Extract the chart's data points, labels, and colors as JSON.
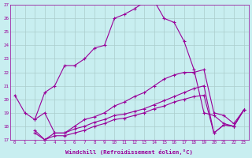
{
  "xlabel": "Windchill (Refroidissement éolien,°C)",
  "xlim": [
    -0.5,
    23.5
  ],
  "ylim": [
    17,
    27
  ],
  "xticks": [
    0,
    1,
    2,
    3,
    4,
    5,
    6,
    7,
    8,
    9,
    10,
    11,
    12,
    13,
    14,
    15,
    16,
    17,
    18,
    19,
    20,
    21,
    22,
    23
  ],
  "yticks": [
    17,
    18,
    19,
    20,
    21,
    22,
    23,
    24,
    25,
    26,
    27
  ],
  "background_color": "#c8eef0",
  "grid_color": "#aacccc",
  "line_color": "#990099",
  "line1_x": [
    0,
    1,
    2,
    3,
    4,
    5,
    6,
    7,
    8,
    9,
    10,
    11,
    12,
    13,
    14,
    15,
    16,
    17,
    18,
    19,
    20,
    21,
    22,
    23
  ],
  "line1_y": [
    20.3,
    19.0,
    18.5,
    20.5,
    21.0,
    22.5,
    22.5,
    23.0,
    23.8,
    24.0,
    26.0,
    26.3,
    26.7,
    27.2,
    27.3,
    26.0,
    25.7,
    24.3,
    22.2,
    19.0,
    18.8,
    18.2,
    18.0,
    19.2
  ],
  "line2_x": [
    2,
    3,
    4,
    5,
    6,
    7,
    8,
    9,
    10,
    11,
    12,
    13,
    14,
    15,
    16,
    17,
    18,
    19,
    20,
    21,
    22,
    23
  ],
  "line2_y": [
    18.5,
    19.0,
    17.5,
    17.5,
    18.0,
    18.5,
    18.7,
    19.0,
    19.5,
    19.8,
    20.2,
    20.5,
    21.0,
    21.5,
    21.8,
    22.0,
    22.0,
    22.2,
    19.0,
    18.8,
    18.2,
    19.2
  ],
  "line3_x": [
    2,
    3,
    4,
    5,
    6,
    7,
    8,
    9,
    10,
    11,
    12,
    13,
    14,
    15,
    16,
    17,
    18,
    19,
    20,
    21,
    22,
    23
  ],
  "line3_y": [
    17.7,
    17.0,
    17.5,
    17.5,
    17.8,
    18.0,
    18.3,
    18.5,
    18.8,
    18.9,
    19.1,
    19.3,
    19.6,
    19.9,
    20.2,
    20.5,
    20.8,
    21.0,
    17.5,
    18.1,
    18.0,
    19.2
  ],
  "line4_x": [
    2,
    3,
    4,
    5,
    6,
    7,
    8,
    9,
    10,
    11,
    12,
    13,
    14,
    15,
    16,
    17,
    18,
    19,
    20,
    21,
    22,
    23
  ],
  "line4_y": [
    17.5,
    17.0,
    17.3,
    17.3,
    17.5,
    17.7,
    18.0,
    18.2,
    18.5,
    18.6,
    18.8,
    19.0,
    19.3,
    19.5,
    19.8,
    20.0,
    20.2,
    20.3,
    17.5,
    18.1,
    18.0,
    19.2
  ]
}
